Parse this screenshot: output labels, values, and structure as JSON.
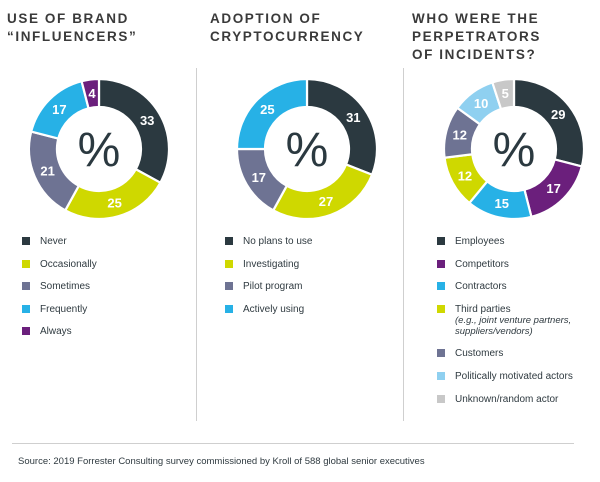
{
  "source": "Source: 2019 Forrester Consulting survey commissioned by Kroll of 588 global senior executives",
  "chart_data": [
    {
      "type": "pie",
      "title": "USE OF BRAND\n“INFLUENCERS”",
      "center_label": "%",
      "categories": [
        "Never",
        "Occasionally",
        "Sometimes",
        "Frequently",
        "Always"
      ],
      "values": [
        33,
        25,
        21,
        17,
        4
      ],
      "colors": [
        "#2b3940",
        "#cfd800",
        "#6e7393",
        "#27b1e6",
        "#6b1f7c"
      ],
      "legend": [
        {
          "label": "Never"
        },
        {
          "label": "Occasionally"
        },
        {
          "label": "Sometimes"
        },
        {
          "label": "Frequently"
        },
        {
          "label": "Always"
        }
      ]
    },
    {
      "type": "pie",
      "title": "ADOPTION OF\nCRYPTOCURRENCY",
      "center_label": "%",
      "categories": [
        "No plans to use",
        "Investigating",
        "Pilot program",
        "Actively using"
      ],
      "values": [
        31,
        27,
        17,
        25
      ],
      "colors": [
        "#2b3940",
        "#cfd800",
        "#6e7393",
        "#27b1e6"
      ],
      "legend": [
        {
          "label": "No plans to use"
        },
        {
          "label": "Investigating"
        },
        {
          "label": "Pilot program"
        },
        {
          "label": "Actively using"
        }
      ]
    },
    {
      "type": "pie",
      "title": "WHO WERE THE\nPERPETRATORS\nOF INCIDENTS?",
      "center_label": "%",
      "categories": [
        "Employees",
        "Competitors",
        "Contractors",
        "Third parties",
        "Customers",
        "Politically motivated actors",
        "Unknown/random actor"
      ],
      "values": [
        29,
        17,
        15,
        12,
        12,
        10,
        5
      ],
      "colors": [
        "#2b3940",
        "#6b1f7c",
        "#27b1e6",
        "#cfd800",
        "#6e7393",
        "#8fd0f0",
        "#c8c8c8"
      ],
      "legend": [
        {
          "label": "Employees"
        },
        {
          "label": "Competitors"
        },
        {
          "label": "Contractors"
        },
        {
          "label": "Third parties",
          "note": "(e.g., joint venture partners, suppliers/vendors)"
        },
        {
          "label": "Customers"
        },
        {
          "label": "Politically motivated actors"
        },
        {
          "label": "Unknown/random actor"
        }
      ]
    }
  ]
}
